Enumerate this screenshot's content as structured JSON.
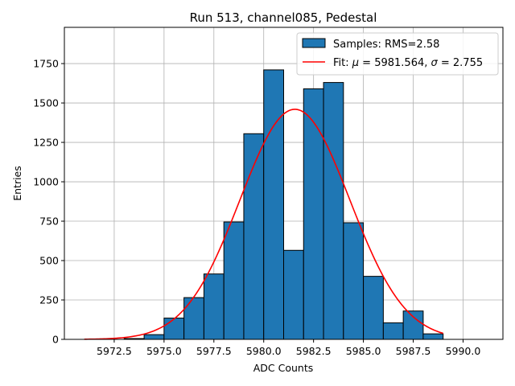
{
  "chart_data": {
    "type": "bar",
    "title": "Run 513, channel085, Pedestal",
    "xlabel": "ADC Counts",
    "ylabel": "Entries",
    "xlim": [
      5970.0,
      5992.0
    ],
    "ylim": [
      0,
      1980
    ],
    "grid": true,
    "xticks": [
      5972.5,
      5975.0,
      5977.5,
      5980.0,
      5982.5,
      5985.0,
      5987.5,
      5990.0
    ],
    "xtick_labels": [
      "5972.5",
      "5975.0",
      "5977.5",
      "5980.0",
      "5982.5",
      "5985.0",
      "5987.5",
      "5990.0"
    ],
    "yticks": [
      0,
      250,
      500,
      750,
      1000,
      1250,
      1500,
      1750
    ],
    "ytick_labels": [
      "0",
      "250",
      "500",
      "750",
      "1000",
      "1250",
      "1500",
      "1750"
    ],
    "bins": [
      {
        "start": 5973,
        "end": 5974,
        "count": 5
      },
      {
        "start": 5974,
        "end": 5975,
        "count": 30
      },
      {
        "start": 5975,
        "end": 5976,
        "count": 135
      },
      {
        "start": 5976,
        "end": 5977,
        "count": 265
      },
      {
        "start": 5977,
        "end": 5978,
        "count": 415
      },
      {
        "start": 5978,
        "end": 5979,
        "count": 745
      },
      {
        "start": 5979,
        "end": 5980,
        "count": 1305
      },
      {
        "start": 5980,
        "end": 5981,
        "count": 1710
      },
      {
        "start": 5981,
        "end": 5982,
        "count": 565
      },
      {
        "start": 5982,
        "end": 5983,
        "count": 1590
      },
      {
        "start": 5983,
        "end": 5984,
        "count": 1630
      },
      {
        "start": 5984,
        "end": 5985,
        "count": 740
      },
      {
        "start": 5985,
        "end": 5986,
        "count": 400
      },
      {
        "start": 5986,
        "end": 5987,
        "count": 105
      },
      {
        "start": 5987,
        "end": 5988,
        "count": 180
      },
      {
        "start": 5988,
        "end": 5989,
        "count": 35
      }
    ],
    "series": [
      {
        "name": "Samples: RMS=2.58",
        "kind": "histogram",
        "color": "#1f77b4",
        "edgecolor": "#000000"
      },
      {
        "name": "Fit",
        "kind": "gaussian",
        "color": "#ff0000",
        "mu": 5981.564,
        "sigma": 2.755,
        "amplitude": 1460,
        "x_range": [
          5971.0,
          5989.0
        ]
      }
    ],
    "legend": {
      "placement": "top-right",
      "entries": [
        {
          "label": "Samples: RMS=2.58",
          "kind": "patch"
        },
        {
          "label_prefix": "Fit: ",
          "mu_symbol": "μ",
          "mu_text": " = 5981.564, ",
          "sigma_symbol": "σ",
          "sigma_text": " = 2.755",
          "kind": "line"
        }
      ]
    }
  }
}
